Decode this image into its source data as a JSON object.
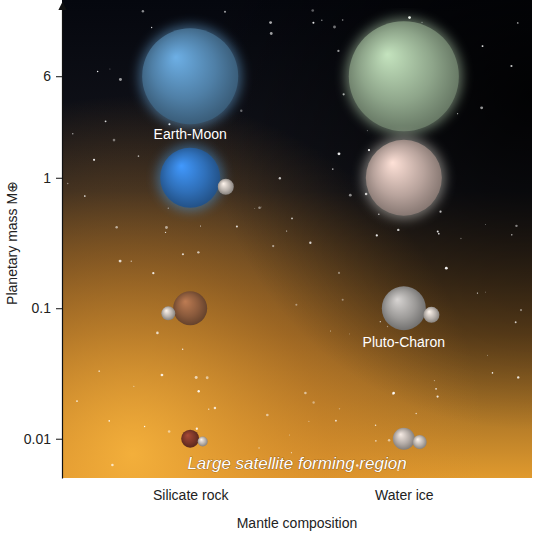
{
  "chart_data": {
    "type": "scatter",
    "x_label": "Mantle composition",
    "y_label": "Planetary mass M⊕",
    "categories": [
      "Silicate rock",
      "Water ice"
    ],
    "series": [
      {
        "values": [
          6,
          6
        ],
        "colors": [
          "#4f7fa6",
          "#8ea58a"
        ]
      },
      {
        "values": [
          1,
          1
        ],
        "colors": [
          "#2f6fb8",
          "#b8a39c"
        ]
      },
      {
        "values": [
          0.1,
          0.1
        ],
        "colors": [
          "#8a5a3c",
          "#9c9a98"
        ]
      },
      {
        "values": [
          0.01,
          0.01
        ],
        "colors": [
          "#7a3628",
          "#b3aba6"
        ]
      }
    ],
    "ylim": [
      0.005,
      20
    ],
    "yticks": [
      0.01,
      0.1,
      1,
      6
    ],
    "log": "y",
    "grid": false,
    "annotations": [
      {
        "text": "Earth-Moon",
        "x": "Silicate rock",
        "y": 1
      },
      {
        "text": "Pluto-Charon",
        "x": "Water ice",
        "y": 0.1
      },
      {
        "text": "Large satellite forming region"
      }
    ]
  }
}
